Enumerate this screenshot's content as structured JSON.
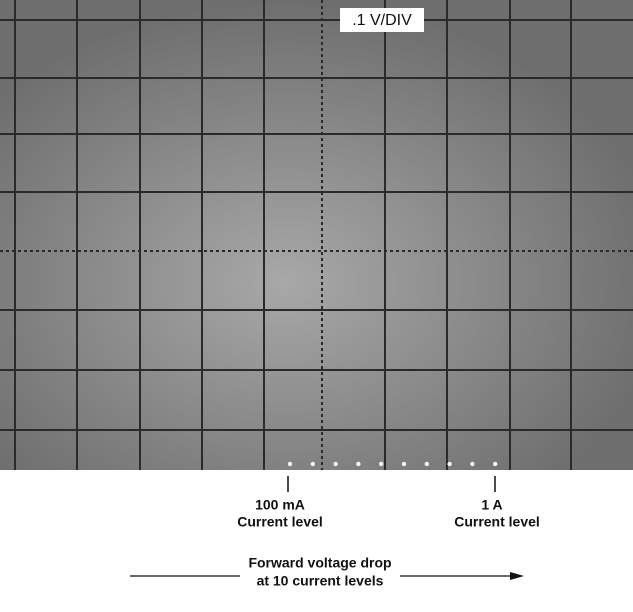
{
  "screen": {
    "scale_label": ".1 V/DIV"
  },
  "markers": [
    {
      "value": "100 mA",
      "caption": "Current level"
    },
    {
      "value": "1 A",
      "caption": "Current level"
    }
  ],
  "footer": {
    "line1": "Forward voltage drop",
    "line2": "at 10 current levels"
  }
}
